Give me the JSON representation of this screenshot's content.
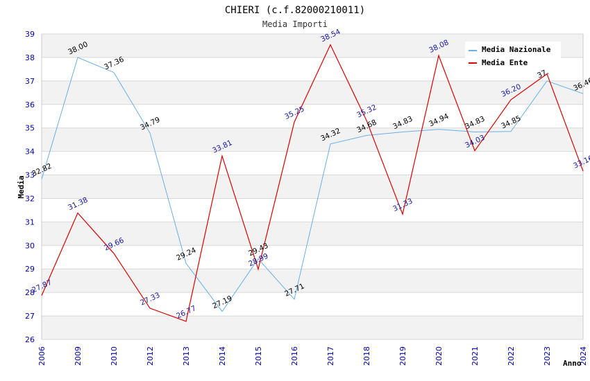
{
  "chart_data": {
    "type": "line",
    "title": "CHIERI (c.f.82000210011)",
    "subtitle": "Media Importi",
    "xlabel": "Anno",
    "ylabel": "Media",
    "categories": [
      "2006",
      "2009",
      "2010",
      "2012",
      "2013",
      "2014",
      "2015",
      "2016",
      "2017",
      "2018",
      "2019",
      "2020",
      "2021",
      "2022",
      "2023",
      "2024"
    ],
    "ylim": [
      26,
      39
    ],
    "yticks": [
      26,
      27,
      28,
      29,
      30,
      31,
      32,
      33,
      34,
      35,
      36,
      37,
      38,
      39
    ],
    "grid": "horizontal alternating bands",
    "legend_position": "top-right",
    "series": [
      {
        "name": "Media Nazionale",
        "color": "#6aaee8",
        "values": [
          32.82,
          38.0,
          37.36,
          34.79,
          29.24,
          27.19,
          29.43,
          27.71,
          34.32,
          34.68,
          34.83,
          34.94,
          34.83,
          34.85,
          37.0,
          36.46
        ],
        "labels": [
          "32.82",
          "38.00",
          "37.36",
          "34.79",
          "29.24",
          "27.19",
          "29.43",
          "27.71",
          "34.32",
          "34.68",
          "34.83",
          "34.94",
          "34.83",
          "34.85",
          "37.",
          "36.46"
        ]
      },
      {
        "name": "Media Ente",
        "color": "#dd0000",
        "values": [
          27.87,
          31.38,
          29.66,
          27.33,
          26.77,
          33.81,
          28.99,
          35.25,
          38.54,
          35.32,
          31.33,
          38.08,
          34.03,
          36.2,
          37.3,
          33.16
        ],
        "labels": [
          "27.87",
          "31.38",
          "29.66",
          "27.33",
          "26.77",
          "33.81",
          "28.99",
          "35.25",
          "38.54",
          "35.32",
          "31.33",
          "38.08",
          "34.03",
          "36.20",
          "",
          "33.16"
        ]
      }
    ]
  }
}
